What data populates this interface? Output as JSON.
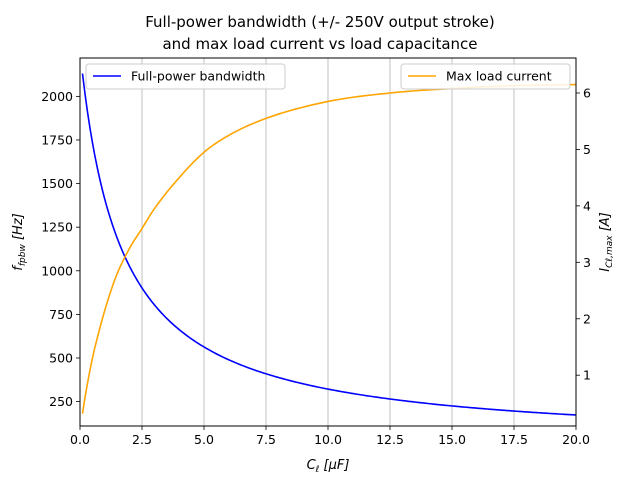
{
  "chart_data": {
    "type": "line",
    "title_line1": "Full-power bandwidth (+/- 250V output stroke)",
    "title_line2": "and max load current vs load capacitance",
    "xlabel": "C_ℓ [μF]",
    "ylabel_left": "f_fpbw [Hz]",
    "ylabel_right": "I_Cℓ,max [A]",
    "xlim": [
      0,
      20
    ],
    "ylim_left": [
      110,
      2220
    ],
    "ylim_right": [
      0.1,
      6.62
    ],
    "x_ticks": [
      0,
      2.5,
      5,
      7.5,
      10,
      12.5,
      15,
      17.5,
      20
    ],
    "x_tick_labels": [
      "0.0",
      "2.5",
      "5.0",
      "7.5",
      "10.0",
      "12.5",
      "15.0",
      "17.5",
      "20.0"
    ],
    "y_left_ticks": [
      250,
      500,
      750,
      1000,
      1250,
      1500,
      1750,
      2000
    ],
    "y_left_tick_labels": [
      "250",
      "500",
      "750",
      "1000",
      "1250",
      "1500",
      "1750",
      "2000"
    ],
    "y_right_ticks": [
      1,
      2,
      3,
      4,
      5,
      6
    ],
    "y_right_tick_labels": [
      "1",
      "2",
      "3",
      "4",
      "5",
      "6"
    ],
    "grid": "vertical",
    "series": [
      {
        "name": "Full-power bandwidth",
        "axis": "left",
        "color": "#0000ff",
        "x": [
          0.1,
          0.2,
          0.3,
          0.5,
          0.75,
          1,
          1.25,
          1.5,
          2,
          2.5,
          3,
          4,
          5,
          6,
          7.5,
          10,
          12.5,
          15,
          17.5,
          20
        ],
        "y": [
          2125,
          1950,
          1810,
          1590,
          1400,
          1250,
          1140,
          1060,
          940,
          985,
          890,
          750,
          640,
          565,
          470,
          370,
          305,
          260,
          228,
          205
        ]
      },
      {
        "name": "Max load current",
        "axis": "right",
        "color": "#ffa500",
        "x": [
          0.1,
          0.2,
          0.3,
          0.5,
          0.75,
          1,
          1.25,
          1.5,
          2,
          2.5,
          3,
          4,
          5,
          6,
          7.5,
          10,
          12.5,
          15,
          17.5,
          20
        ],
        "y": [
          0.32,
          0.6,
          0.85,
          1.3,
          1.75,
          2.15,
          2.5,
          2.8,
          3.25,
          3.6,
          3.95,
          4.5,
          4.95,
          5.25,
          5.55,
          5.85,
          6.0,
          6.08,
          6.13,
          6.15
        ]
      }
    ],
    "legend_left": "top-left",
    "legend_right": "top-right"
  }
}
